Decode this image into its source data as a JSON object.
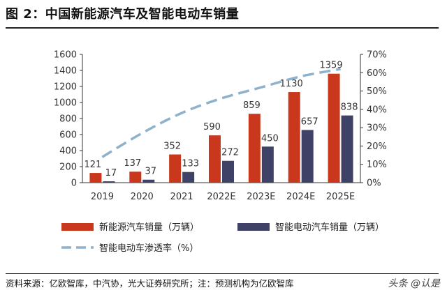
{
  "header": {
    "title": "图 2：中国新能源汽车及智能电动车销量"
  },
  "footer": {
    "source": "资料来源：亿欧智库，中汽协，光大证券研究所；注：预测机构为亿欧智库",
    "watermark": "头条 @认是"
  },
  "colors": {
    "nev": "#c9371c",
    "smart": "#3f4266",
    "line": "#8eb2cb"
  },
  "chart_data": {
    "type": "bar",
    "title": "中国新能源汽车及智能电动车销量",
    "categories": [
      "2019",
      "2020",
      "2021",
      "2022E",
      "2023E",
      "2024E",
      "2025E"
    ],
    "series": [
      {
        "name": "新能源汽车销量（万辆）",
        "values": [
          121,
          137,
          352,
          590,
          859,
          1130,
          1359
        ],
        "axis": "left"
      },
      {
        "name": "智能电动汽车销量（万辆）",
        "values": [
          17,
          37,
          133,
          272,
          450,
          657,
          838
        ],
        "axis": "left"
      },
      {
        "name": "智能电动车渗透率（%）",
        "type": "line",
        "style": "dashed",
        "values": [
          14,
          27,
          38,
          46,
          52,
          58,
          62
        ],
        "axis": "right"
      }
    ],
    "ylim": [
      0,
      1600
    ],
    "yticks": [
      "0",
      "200",
      "400",
      "600",
      "800",
      "1000",
      "1200",
      "1400",
      "1600"
    ],
    "y2lim": [
      0,
      70
    ],
    "y2ticks": [
      "0%",
      "10%",
      "20%",
      "30%",
      "40%",
      "50%",
      "60%",
      "70%"
    ],
    "legend_position": "bottom"
  }
}
